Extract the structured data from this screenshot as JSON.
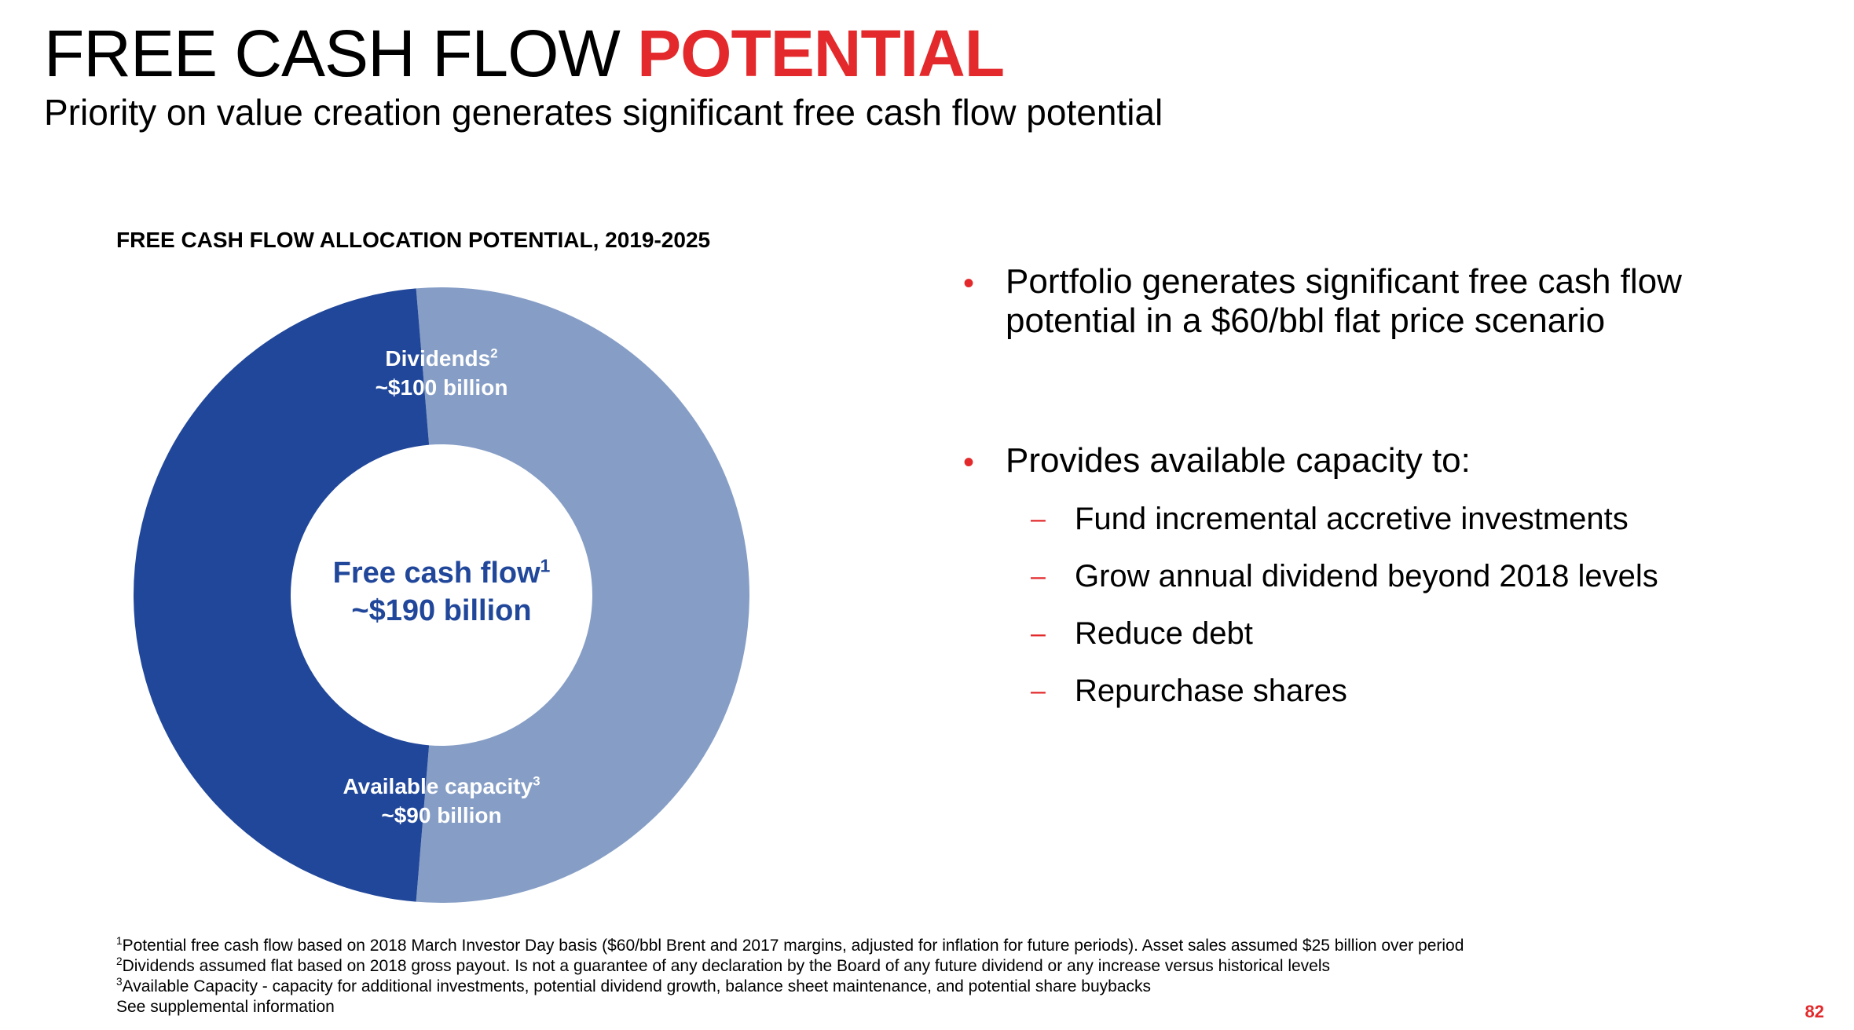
{
  "header": {
    "title_main": "FREE CASH FLOW",
    "title_accent": "POTENTIAL",
    "subtitle": "Priority on value creation generates significant free cash flow potential"
  },
  "chart_data": {
    "type": "pie",
    "title": "FREE CASH FLOW ALLOCATION POTENTIAL, 2019-2025",
    "center": {
      "name": "Free cash flow",
      "marker": "1",
      "value_label": "~$190 billion",
      "value": 190
    },
    "slices": [
      {
        "name": "Dividends",
        "marker": "2",
        "value_label": "~$100 billion",
        "value": 100,
        "color": "#869ec6"
      },
      {
        "name": "Available capacity",
        "marker": "3",
        "value_label": "~$90 billion",
        "value": 90,
        "color": "#21479a"
      }
    ],
    "colors": {
      "center_text": "#21479a"
    }
  },
  "bullets": {
    "b1": "Portfolio generates significant free cash flow potential in a $60/bbl flat price scenario",
    "b2": "Provides available capacity to:",
    "subs": [
      "Fund incremental accretive investments",
      "Grow annual dividend beyond 2018 levels",
      "Reduce debt",
      "Repurchase shares"
    ],
    "bullet_glyph": "•",
    "dash_glyph": "–"
  },
  "footnotes": [
    {
      "marker": "1",
      "text": "Potential free cash flow based on 2018 March Investor Day basis ($60/bbl Brent and 2017 margins, adjusted for inflation for future periods).  Asset sales assumed $25 billion over period"
    },
    {
      "marker": "2",
      "text": "Dividends assumed flat based on 2018 gross payout. Is not a guarantee of any declaration by the Board of any future dividend or any increase versus historical levels"
    },
    {
      "marker": "3",
      "text": "Available Capacity - capacity for additional investments, potential dividend growth, balance sheet maintenance, and potential share buybacks"
    },
    {
      "marker": "",
      "text": "See supplemental information"
    }
  ],
  "page_number": "82",
  "colors": {
    "accent": "#e3292b"
  }
}
